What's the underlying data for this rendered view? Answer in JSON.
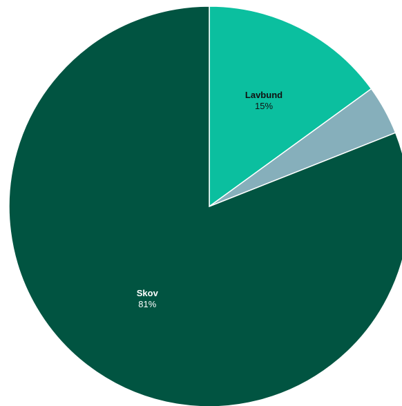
{
  "chart_data": {
    "type": "pie",
    "slices": [
      {
        "name": "Lavbund",
        "percent_label": "15%",
        "value": 15,
        "color": "#0bbf9f",
        "text_color": "#111111",
        "show_label": true
      },
      {
        "name": "",
        "percent_label": "",
        "value": 4,
        "color": "#86afbb",
        "text_color": "#111111",
        "show_label": false
      },
      {
        "name": "Skov",
        "percent_label": "81%",
        "value": 81,
        "color": "#015441",
        "text_color": "#ffffff",
        "show_label": true
      }
    ],
    "start_angle_deg": 0,
    "direction": "clockwise",
    "background": "#ffffff"
  }
}
